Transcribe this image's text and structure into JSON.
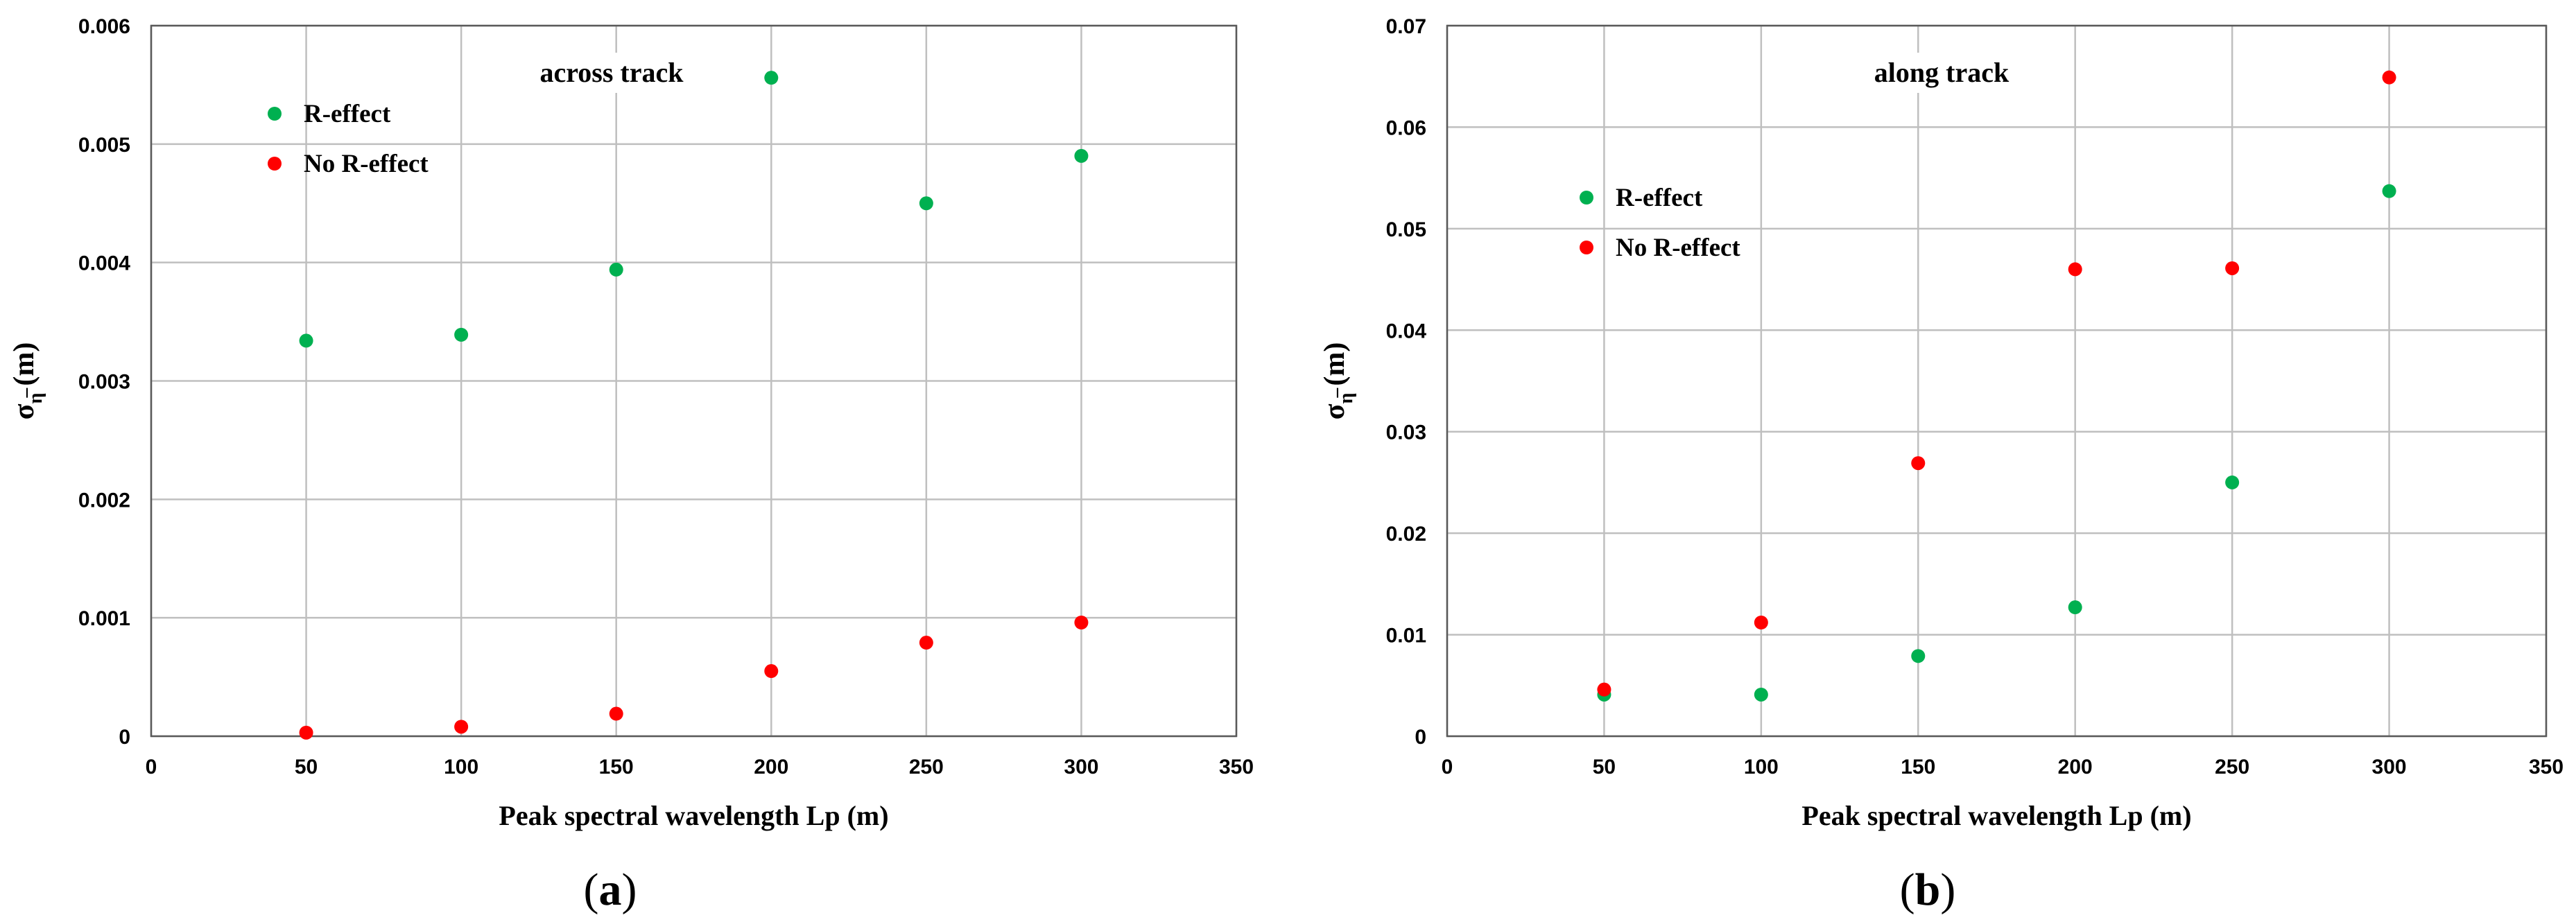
{
  "chart_data": [
    {
      "type": "scatter",
      "panel_label": "a",
      "annotation": "across track",
      "xlabel": "Peak spectral wavelength Lp (m)",
      "ylabel": "σ (m)",
      "ylabel_symbol": "σ",
      "ylabel_subscript": "η̅",
      "ylabel_unit": "(m)",
      "xlim": [
        0,
        350
      ],
      "ylim": [
        0,
        0.006
      ],
      "x_ticks": [
        "0",
        "50",
        "100",
        "150",
        "200",
        "250",
        "300",
        "350"
      ],
      "y_ticks": [
        "0",
        "0.001",
        "0.002",
        "0.003",
        "0.004",
        "0.005",
        "0.006"
      ],
      "grid": true,
      "legend_position": "top-left",
      "series": [
        {
          "name": "R-effect",
          "color": "#00b050",
          "x": [
            50,
            100,
            150,
            200,
            250,
            300
          ],
          "y": [
            0.00334,
            0.00339,
            0.00394,
            0.00556,
            0.0045,
            0.0049
          ]
        },
        {
          "name": "No R-effect",
          "color": "#ff0000",
          "x": [
            50,
            100,
            150,
            200,
            250,
            300
          ],
          "y": [
            3e-05,
            8e-05,
            0.00019,
            0.00055,
            0.00079,
            0.00096
          ]
        }
      ]
    },
    {
      "type": "scatter",
      "panel_label": "b",
      "annotation": "along track",
      "xlabel": "Peak spectral wavelength Lp (m)",
      "ylabel": "σ (m)",
      "ylabel_symbol": "σ",
      "ylabel_subscript": "η̅",
      "ylabel_unit": "(m)",
      "xlim": [
        0,
        350
      ],
      "ylim": [
        0,
        0.07
      ],
      "x_ticks": [
        "0",
        "50",
        "100",
        "150",
        "200",
        "250",
        "300",
        "350"
      ],
      "y_ticks": [
        "0",
        "0.01",
        "0.02",
        "0.03",
        "0.04",
        "0.05",
        "0.06",
        "0.07"
      ],
      "grid": true,
      "legend_position": "upper-left",
      "series": [
        {
          "name": "R-effect",
          "color": "#00b050",
          "x": [
            50,
            100,
            150,
            200,
            250,
            300
          ],
          "y": [
            0.0041,
            0.0041,
            0.0079,
            0.0127,
            0.025,
            0.0537
          ]
        },
        {
          "name": "No R-effect",
          "color": "#ff0000",
          "x": [
            50,
            100,
            150,
            200,
            250,
            300
          ],
          "y": [
            0.0046,
            0.0112,
            0.0269,
            0.046,
            0.0461,
            0.0649
          ]
        }
      ]
    }
  ]
}
